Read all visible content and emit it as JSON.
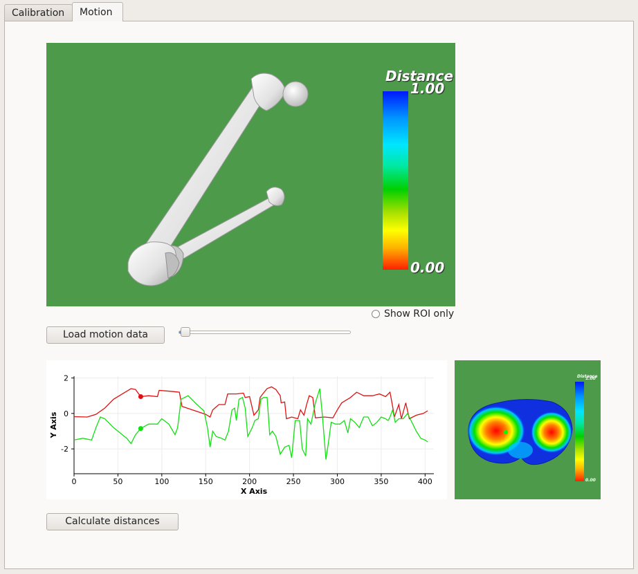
{
  "tabs": [
    {
      "label": "Calibration",
      "active": false
    },
    {
      "label": "Motion",
      "active": true
    }
  ],
  "view3d": {
    "background": "#4e9a4b",
    "legend": {
      "title": "Distance",
      "max": "1.00",
      "min": "0.00"
    }
  },
  "roi_checkbox": {
    "label": "Show ROI only",
    "checked": false
  },
  "load_button": {
    "label": "Load motion data"
  },
  "slider": {
    "value": 0.04
  },
  "calculate_button": {
    "label": "Calculate distances"
  },
  "chart_data": {
    "type": "line",
    "xlabel": "X Axis",
    "ylabel": "Y Axis",
    "xlim": [
      0,
      410
    ],
    "ylim": [
      -3.4,
      2.1
    ],
    "x_ticks": [
      0,
      50,
      100,
      150,
      200,
      250,
      300,
      350,
      400
    ],
    "y_ticks": [
      -2,
      0,
      2
    ],
    "grid": true,
    "series": [
      {
        "color": "#e01010",
        "marker": {
          "x": 76,
          "y": 0.95
        },
        "points": [
          [
            0,
            -0.18
          ],
          [
            15,
            -0.2
          ],
          [
            25,
            -0.05
          ],
          [
            35,
            0.3
          ],
          [
            45,
            0.8
          ],
          [
            55,
            1.1
          ],
          [
            65,
            1.4
          ],
          [
            70,
            1.35
          ],
          [
            76,
            0.95
          ],
          [
            85,
            1.0
          ],
          [
            95,
            0.95
          ],
          [
            97,
            1.3
          ],
          [
            110,
            1.25
          ],
          [
            120,
            1.2
          ],
          [
            123,
            0.4
          ],
          [
            135,
            0.2
          ],
          [
            150,
            -0.05
          ],
          [
            155,
            -0.2
          ],
          [
            158,
            0.2
          ],
          [
            165,
            0.5
          ],
          [
            172,
            0.5
          ],
          [
            175,
            1.1
          ],
          [
            185,
            1.1
          ],
          [
            193,
            1.15
          ],
          [
            195,
            0.9
          ],
          [
            200,
            0.95
          ],
          [
            205,
            -0.1
          ],
          [
            210,
            0.2
          ],
          [
            212,
            0.9
          ],
          [
            215,
            1.1
          ],
          [
            220,
            1.4
          ],
          [
            225,
            1.5
          ],
          [
            230,
            1.35
          ],
          [
            235,
            1.0
          ],
          [
            236,
            0.6
          ],
          [
            240,
            0.65
          ],
          [
            242,
            -0.3
          ],
          [
            248,
            -0.2
          ],
          [
            255,
            -0.3
          ],
          [
            258,
            0.2
          ],
          [
            262,
            -0.1
          ],
          [
            265,
            0.5
          ],
          [
            268,
            1.0
          ],
          [
            272,
            0.9
          ],
          [
            275,
            -0.25
          ],
          [
            285,
            -0.2
          ],
          [
            295,
            -0.25
          ],
          [
            300,
            0.2
          ],
          [
            305,
            0.6
          ],
          [
            315,
            0.9
          ],
          [
            322,
            1.2
          ],
          [
            330,
            1.0
          ],
          [
            340,
            1.0
          ],
          [
            348,
            1.1
          ],
          [
            355,
            0.95
          ],
          [
            360,
            1.2
          ],
          [
            363,
            0.4
          ],
          [
            365,
            -0.2
          ],
          [
            370,
            0.5
          ],
          [
            373,
            -0.3
          ],
          [
            378,
            0.6
          ],
          [
            382,
            -0.3
          ],
          [
            390,
            -0.1
          ],
          [
            398,
            0.0
          ],
          [
            403,
            0.15
          ]
        ]
      },
      {
        "color": "#10e010",
        "marker": {
          "x": 76,
          "y": -0.85
        },
        "points": [
          [
            0,
            -1.5
          ],
          [
            10,
            -1.4
          ],
          [
            20,
            -1.5
          ],
          [
            25,
            -0.8
          ],
          [
            30,
            -0.2
          ],
          [
            35,
            -0.3
          ],
          [
            45,
            -0.8
          ],
          [
            55,
            -1.2
          ],
          [
            60,
            -1.4
          ],
          [
            65,
            -1.7
          ],
          [
            70,
            -1.2
          ],
          [
            76,
            -0.85
          ],
          [
            85,
            -0.6
          ],
          [
            95,
            -0.6
          ],
          [
            100,
            -0.3
          ],
          [
            108,
            -0.6
          ],
          [
            115,
            -1.2
          ],
          [
            118,
            -0.8
          ],
          [
            122,
            0.8
          ],
          [
            130,
            1.0
          ],
          [
            140,
            0.5
          ],
          [
            148,
            0.15
          ],
          [
            152,
            -0.8
          ],
          [
            155,
            -1.9
          ],
          [
            158,
            -1.0
          ],
          [
            162,
            -1.3
          ],
          [
            168,
            -1.4
          ],
          [
            172,
            -1.5
          ],
          [
            176,
            -1.0
          ],
          [
            180,
            0.2
          ],
          [
            183,
            0.3
          ],
          [
            185,
            -0.4
          ],
          [
            188,
            0.8
          ],
          [
            192,
            0.9
          ],
          [
            195,
            0.3
          ],
          [
            198,
            -1.3
          ],
          [
            203,
            -0.8
          ],
          [
            206,
            -0.4
          ],
          [
            210,
            -0.3
          ],
          [
            213,
            0.8
          ],
          [
            216,
            0.9
          ],
          [
            220,
            0.9
          ],
          [
            223,
            -1.2
          ],
          [
            226,
            -1.0
          ],
          [
            230,
            -1.3
          ],
          [
            235,
            -2.3
          ],
          [
            240,
            -1.9
          ],
          [
            245,
            -1.8
          ],
          [
            248,
            -2.5
          ],
          [
            252,
            -0.4
          ],
          [
            257,
            -0.4
          ],
          [
            260,
            -2.0
          ],
          [
            264,
            -2.4
          ],
          [
            266,
            -0.3
          ],
          [
            270,
            -0.6
          ],
          [
            275,
            0.6
          ],
          [
            280,
            1.4
          ],
          [
            283,
            -0.1
          ],
          [
            287,
            -2.6
          ],
          [
            290,
            -1.6
          ],
          [
            293,
            -0.5
          ],
          [
            298,
            -0.6
          ],
          [
            303,
            -0.6
          ],
          [
            308,
            -0.4
          ],
          [
            312,
            -1.1
          ],
          [
            315,
            -0.3
          ],
          [
            320,
            -0.5
          ],
          [
            325,
            -0.8
          ],
          [
            330,
            -0.2
          ],
          [
            335,
            -0.2
          ],
          [
            340,
            -0.7
          ],
          [
            345,
            -0.5
          ],
          [
            350,
            -0.2
          ],
          [
            355,
            -0.3
          ],
          [
            358,
            -0.4
          ],
          [
            360,
            -0.2
          ],
          [
            363,
            0.2
          ],
          [
            366,
            -0.5
          ],
          [
            370,
            -0.3
          ],
          [
            375,
            -0.3
          ],
          [
            380,
            0.0
          ],
          [
            385,
            -0.5
          ],
          [
            390,
            -1.0
          ],
          [
            395,
            -1.4
          ],
          [
            400,
            -1.5
          ],
          [
            403,
            -1.6
          ]
        ]
      }
    ]
  },
  "small_view": {
    "background": "#4e9a4b",
    "legend": {
      "title": "Distance",
      "max": "1.00",
      "min": "0.00"
    }
  }
}
